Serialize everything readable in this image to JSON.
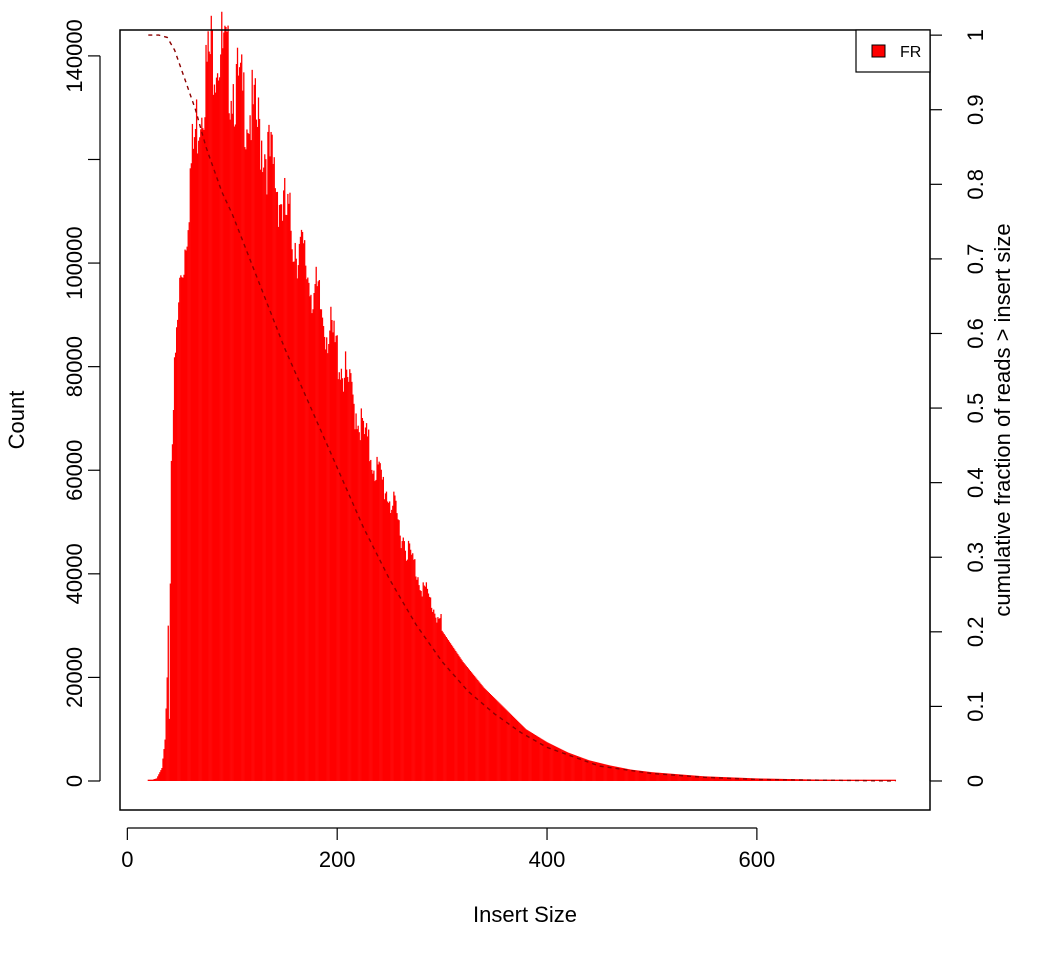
{
  "colors": {
    "bars": "#ff0000",
    "cumulative": "#8b0000",
    "axis": "#000000",
    "background": "#ffffff"
  },
  "chart_data": {
    "type": "bar",
    "title": "",
    "xlabel": "Insert Size",
    "ylabel": "Count",
    "y2label": "cumulative fraction of reads > insert size",
    "xlim": [
      -7,
      765
    ],
    "ylim": [
      -5600,
      145000
    ],
    "y2lim": [
      -0.0389,
      1.0069
    ],
    "xticks": [
      0,
      200,
      400,
      600
    ],
    "yticks": [
      0,
      20000,
      40000,
      60000,
      80000,
      100000,
      140000
    ],
    "y2ticks": [
      0,
      0.1,
      0.2,
      0.3,
      0.4,
      0.5,
      0.6,
      0.7,
      0.8,
      0.9,
      1
    ],
    "grid": false,
    "legend": {
      "placement": "top-right",
      "entries": [
        "FR"
      ]
    },
    "series": [
      {
        "name": "FR",
        "kind": "histogram",
        "points": [
          [
            20,
            0
          ],
          [
            28,
            500
          ],
          [
            33,
            2500
          ],
          [
            36,
            8000
          ],
          [
            38,
            20000
          ],
          [
            39,
            30000
          ],
          [
            40,
            12000
          ],
          [
            42,
            62000
          ],
          [
            45,
            75000
          ],
          [
            50,
            92000
          ],
          [
            55,
            100000
          ],
          [
            60,
            113000
          ],
          [
            65,
            121000
          ],
          [
            70,
            127000
          ],
          [
            75,
            132000
          ],
          [
            80,
            136000
          ],
          [
            85,
            137000
          ],
          [
            90,
            136000
          ],
          [
            95,
            133000
          ],
          [
            100,
            131000
          ],
          [
            110,
            127000
          ],
          [
            120,
            124000
          ],
          [
            130,
            119000
          ],
          [
            140,
            113000
          ],
          [
            150,
            106000
          ],
          [
            160,
            101000
          ],
          [
            170,
            96000
          ],
          [
            180,
            90000
          ],
          [
            190,
            85000
          ],
          [
            200,
            80000
          ],
          [
            210,
            74000
          ],
          [
            220,
            68000
          ],
          [
            230,
            62000
          ],
          [
            240,
            57000
          ],
          [
            250,
            53000
          ],
          [
            260,
            47000
          ],
          [
            270,
            42000
          ],
          [
            280,
            37000
          ],
          [
            290,
            33000
          ],
          [
            300,
            29000
          ],
          [
            320,
            23000
          ],
          [
            340,
            18000
          ],
          [
            360,
            14000
          ],
          [
            380,
            10000
          ],
          [
            400,
            7500
          ],
          [
            420,
            5500
          ],
          [
            440,
            4000
          ],
          [
            460,
            3000
          ],
          [
            480,
            2200
          ],
          [
            500,
            1700
          ],
          [
            550,
            900
          ],
          [
            600,
            500
          ],
          [
            650,
            300
          ],
          [
            700,
            200
          ],
          [
            732,
            100
          ]
        ]
      },
      {
        "name": "",
        "kind": "cumulative",
        "axis": "y2",
        "points": [
          [
            20,
            1.0
          ],
          [
            30,
            1.0
          ],
          [
            38,
            0.997
          ],
          [
            45,
            0.98
          ],
          [
            55,
            0.94
          ],
          [
            65,
            0.9
          ],
          [
            75,
            0.85
          ],
          [
            90,
            0.79
          ],
          [
            100,
            0.76
          ],
          [
            125,
            0.67
          ],
          [
            150,
            0.58
          ],
          [
            175,
            0.5
          ],
          [
            200,
            0.42
          ],
          [
            225,
            0.34
          ],
          [
            250,
            0.27
          ],
          [
            275,
            0.21
          ],
          [
            300,
            0.16
          ],
          [
            325,
            0.12
          ],
          [
            350,
            0.09
          ],
          [
            375,
            0.065
          ],
          [
            400,
            0.045
          ],
          [
            450,
            0.02
          ],
          [
            500,
            0.01
          ],
          [
            550,
            0.005
          ],
          [
            600,
            0.002
          ],
          [
            700,
            0.0005
          ],
          [
            732,
            0
          ]
        ]
      }
    ]
  }
}
